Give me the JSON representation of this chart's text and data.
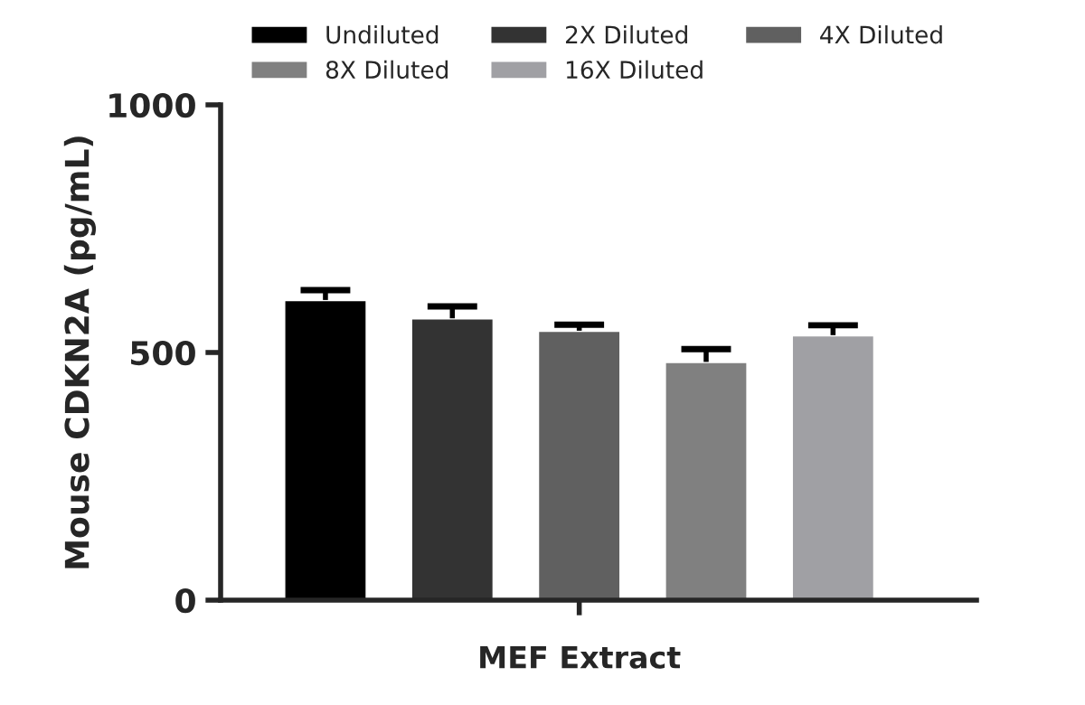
{
  "chart_data": {
    "type": "bar",
    "ylabel": "Mouse CDKN2A (pg/mL)",
    "categories": [
      "MEF Extract"
    ],
    "series": [
      {
        "name": "Undiluted",
        "color": "#000000",
        "values": [
          606
        ],
        "errors": [
          [
            606,
            626
          ]
        ]
      },
      {
        "name": "2X Diluted",
        "color": "#333333",
        "values": [
          569
        ],
        "errors": [
          [
            569,
            593
          ]
        ]
      },
      {
        "name": "4X Diluted",
        "color": "#606060",
        "values": [
          544
        ],
        "errors": [
          [
            544,
            556
          ]
        ]
      },
      {
        "name": "8X Diluted",
        "color": "#808080",
        "values": [
          481
        ],
        "errors": [
          [
            481,
            507
          ]
        ]
      },
      {
        "name": "16X Diluted",
        "color": "#a0a0a4",
        "values": [
          535
        ],
        "errors": [
          [
            535,
            555
          ]
        ]
      }
    ],
    "ylim": [
      0,
      1000
    ],
    "yticks": [
      0,
      500,
      1000
    ],
    "grid": false,
    "legend": "top"
  }
}
